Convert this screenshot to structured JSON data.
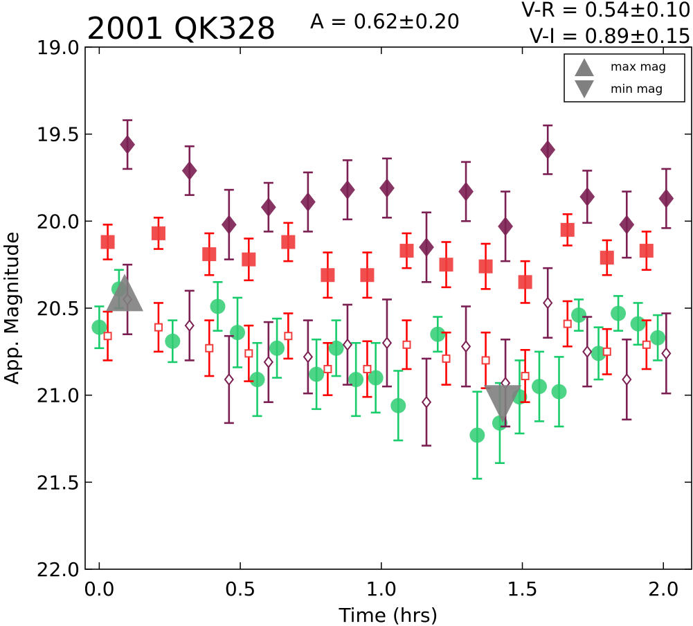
{
  "chart_data": {
    "type": "scatter",
    "title": "2001 QK328",
    "amplitude_text": "A  = 0.62±0.20",
    "color_lines": [
      "V-R = 0.54±0.10",
      "V-I  = 0.89±0.15"
    ],
    "xlabel": "Time (hrs)",
    "ylabel": "App. Magnitude",
    "xlim": [
      -0.05,
      2.1
    ],
    "ylim": [
      22.0,
      19.0
    ],
    "y_inverted": true,
    "xticks": [
      0.0,
      0.5,
      1.0,
      1.5,
      2.0
    ],
    "xtick_labels": [
      "0.0",
      "0.5",
      "1.0",
      "1.5",
      "2.0"
    ],
    "yticks": [
      19.0,
      19.5,
      20.0,
      20.5,
      21.0,
      21.5,
      22.0
    ],
    "ytick_labels": [
      "19.0",
      "19.5",
      "20.0",
      "20.5",
      "21.0",
      "21.5",
      "22.0"
    ],
    "grid": false,
    "legend_position": "top-right",
    "legend": [
      {
        "label": "max mag",
        "marker": "triangle-up",
        "color": "#808080"
      },
      {
        "label": "min mag",
        "marker": "triangle-down",
        "color": "#808080"
      }
    ],
    "series": [
      {
        "marker": "diamond",
        "filled": true,
        "color": "#7b1f52",
        "err_color": "#7b1f52",
        "points": [
          {
            "x": 0.1,
            "y": 19.56,
            "err": 0.14
          },
          {
            "x": 0.32,
            "y": 19.71,
            "err": 0.14
          },
          {
            "x": 0.46,
            "y": 20.02,
            "err": 0.2
          },
          {
            "x": 0.6,
            "y": 19.92,
            "err": 0.14
          },
          {
            "x": 0.74,
            "y": 19.89,
            "err": 0.17
          },
          {
            "x": 0.88,
            "y": 19.82,
            "err": 0.17
          },
          {
            "x": 1.02,
            "y": 19.81,
            "err": 0.17
          },
          {
            "x": 1.16,
            "y": 20.15,
            "err": 0.2
          },
          {
            "x": 1.3,
            "y": 19.83,
            "err": 0.17
          },
          {
            "x": 1.44,
            "y": 20.03,
            "err": 0.2
          },
          {
            "x": 1.59,
            "y": 19.59,
            "err": 0.14
          },
          {
            "x": 1.73,
            "y": 19.86,
            "err": 0.15
          },
          {
            "x": 1.87,
            "y": 20.02,
            "err": 0.19
          },
          {
            "x": 2.01,
            "y": 19.87,
            "err": 0.17
          }
        ]
      },
      {
        "marker": "square",
        "filled": true,
        "color": "#f03c3c",
        "err_color": "#ff0000",
        "points": [
          {
            "x": 0.03,
            "y": 20.12,
            "err": 0.1
          },
          {
            "x": 0.21,
            "y": 20.07,
            "err": 0.09
          },
          {
            "x": 0.39,
            "y": 20.19,
            "err": 0.12
          },
          {
            "x": 0.53,
            "y": 20.22,
            "err": 0.12
          },
          {
            "x": 0.67,
            "y": 20.12,
            "err": 0.11
          },
          {
            "x": 0.81,
            "y": 20.31,
            "err": 0.13
          },
          {
            "x": 0.95,
            "y": 20.31,
            "err": 0.13
          },
          {
            "x": 1.09,
            "y": 20.17,
            "err": 0.1
          },
          {
            "x": 1.23,
            "y": 20.25,
            "err": 0.13
          },
          {
            "x": 1.37,
            "y": 20.26,
            "err": 0.13
          },
          {
            "x": 1.51,
            "y": 20.35,
            "err": 0.12
          },
          {
            "x": 1.66,
            "y": 20.05,
            "err": 0.09
          },
          {
            "x": 1.8,
            "y": 20.21,
            "err": 0.1
          },
          {
            "x": 1.94,
            "y": 20.17,
            "err": 0.11
          }
        ]
      },
      {
        "marker": "circle",
        "filled": true,
        "color": "#2ecc71",
        "err_color": "#19cc6b",
        "points": [
          {
            "x": 0.0,
            "y": 20.61,
            "err": 0.12
          },
          {
            "x": 0.07,
            "y": 20.39,
            "err": 0.11
          },
          {
            "x": 0.26,
            "y": 20.69,
            "err": 0.12
          },
          {
            "x": 0.42,
            "y": 20.49,
            "err": 0.14
          },
          {
            "x": 0.49,
            "y": 20.64,
            "err": 0.2
          },
          {
            "x": 0.56,
            "y": 20.91,
            "err": 0.21
          },
          {
            "x": 0.63,
            "y": 20.73,
            "err": 0.17
          },
          {
            "x": 0.77,
            "y": 20.88,
            "err": 0.2
          },
          {
            "x": 0.84,
            "y": 20.73,
            "err": 0.16
          },
          {
            "x": 0.91,
            "y": 20.91,
            "err": 0.21
          },
          {
            "x": 0.98,
            "y": 20.9,
            "err": 0.2
          },
          {
            "x": 1.06,
            "y": 21.06,
            "err": 0.2
          },
          {
            "x": 1.2,
            "y": 20.65,
            "err": 0.1
          },
          {
            "x": 1.34,
            "y": 21.23,
            "err": 0.25
          },
          {
            "x": 1.42,
            "y": 21.16,
            "err": 0.23
          },
          {
            "x": 1.49,
            "y": 21.01,
            "err": 0.21
          },
          {
            "x": 1.56,
            "y": 20.95,
            "err": 0.2
          },
          {
            "x": 1.63,
            "y": 20.98,
            "err": 0.2
          },
          {
            "x": 1.7,
            "y": 20.54,
            "err": 0.09
          },
          {
            "x": 1.77,
            "y": 20.76,
            "err": 0.15
          },
          {
            "x": 1.84,
            "y": 20.53,
            "err": 0.1
          },
          {
            "x": 1.91,
            "y": 20.59,
            "err": 0.12
          },
          {
            "x": 1.98,
            "y": 20.67,
            "err": 0.13
          }
        ]
      },
      {
        "marker": "square",
        "filled": false,
        "color": "#f03c3c",
        "err_color": "#ff0000",
        "points": [
          {
            "x": 0.03,
            "y": 20.66,
            "err": 0.14
          },
          {
            "x": 0.21,
            "y": 20.61,
            "err": 0.14
          },
          {
            "x": 0.39,
            "y": 20.73,
            "err": 0.16
          },
          {
            "x": 0.53,
            "y": 20.76,
            "err": 0.16
          },
          {
            "x": 0.67,
            "y": 20.66,
            "err": 0.13
          },
          {
            "x": 0.81,
            "y": 20.85,
            "err": 0.15
          },
          {
            "x": 0.95,
            "y": 20.85,
            "err": 0.16
          },
          {
            "x": 1.09,
            "y": 20.71,
            "err": 0.14
          },
          {
            "x": 1.23,
            "y": 20.79,
            "err": 0.15
          },
          {
            "x": 1.37,
            "y": 20.8,
            "err": 0.16
          },
          {
            "x": 1.51,
            "y": 20.89,
            "err": 0.15
          },
          {
            "x": 1.66,
            "y": 20.59,
            "err": 0.13
          },
          {
            "x": 1.8,
            "y": 20.75,
            "err": 0.13
          },
          {
            "x": 1.94,
            "y": 20.71,
            "err": 0.14
          }
        ]
      },
      {
        "marker": "diamond",
        "filled": false,
        "color": "#7b1f52",
        "err_color": "#7b1f52",
        "points": [
          {
            "x": 0.1,
            "y": 20.45,
            "err": 0.2
          },
          {
            "x": 0.32,
            "y": 20.6,
            "err": 0.2
          },
          {
            "x": 0.46,
            "y": 20.91,
            "err": 0.25
          },
          {
            "x": 0.6,
            "y": 20.81,
            "err": 0.23
          },
          {
            "x": 0.74,
            "y": 20.78,
            "err": 0.21
          },
          {
            "x": 0.88,
            "y": 20.71,
            "err": 0.23
          },
          {
            "x": 1.02,
            "y": 20.7,
            "err": 0.25
          },
          {
            "x": 1.16,
            "y": 21.04,
            "err": 0.25
          },
          {
            "x": 1.3,
            "y": 20.72,
            "err": 0.23
          },
          {
            "x": 1.44,
            "y": 20.93,
            "err": 0.25
          },
          {
            "x": 1.59,
            "y": 20.47,
            "err": 0.2
          },
          {
            "x": 1.73,
            "y": 20.75,
            "err": 0.2
          },
          {
            "x": 1.87,
            "y": 20.91,
            "err": 0.23
          },
          {
            "x": 2.01,
            "y": 20.76,
            "err": 0.23
          }
        ]
      }
    ],
    "extrema_markers": [
      {
        "label": "max mag",
        "marker": "triangle-up",
        "x": 0.09,
        "y": 20.43,
        "color": "#808080"
      },
      {
        "label": "min mag",
        "marker": "triangle-down",
        "x": 1.43,
        "y": 21.03,
        "color": "#808080"
      }
    ]
  }
}
